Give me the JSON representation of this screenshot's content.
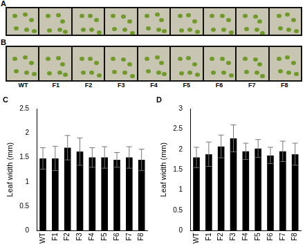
{
  "figure": {
    "photo_panels": [
      "A",
      "B"
    ],
    "photo_labels": [
      "WT",
      "F1",
      "F2",
      "F3",
      "F4",
      "F5",
      "F6",
      "F7",
      "F8"
    ]
  },
  "chart_data": [
    {
      "type": "bar",
      "panel_label": "C",
      "y_label": "Leaf width (mm)",
      "categories": [
        "WT",
        "F1",
        "F2",
        "F3",
        "F4",
        "F5",
        "F6",
        "F7",
        "F8"
      ],
      "values": [
        1.48,
        1.48,
        1.7,
        1.62,
        1.5,
        1.5,
        1.45,
        1.5,
        1.45
      ],
      "errors": [
        0.22,
        0.25,
        0.25,
        0.28,
        0.2,
        0.22,
        0.15,
        0.22,
        0.22
      ],
      "color": "#000000",
      "ylim": [
        0,
        2.5
      ],
      "yticks": [
        0,
        0.5,
        1,
        1.5,
        2,
        2.5
      ],
      "grid": false
    },
    {
      "type": "bar",
      "panel_label": "D",
      "y_label": "Leaf width (mm)",
      "categories": [
        "WT",
        "F1",
        "F2",
        "F3",
        "F4",
        "F5",
        "F6",
        "F7",
        "F8"
      ],
      "values": [
        1.8,
        1.88,
        2.07,
        2.27,
        1.95,
        2.02,
        1.85,
        1.95,
        1.88
      ],
      "errors": [
        0.25,
        0.3,
        0.28,
        0.33,
        0.2,
        0.22,
        0.2,
        0.25,
        0.27
      ],
      "color": "#000000",
      "ylim": [
        0,
        3
      ],
      "yticks": [
        0,
        0.5,
        1,
        1.5,
        2,
        2.5,
        3
      ],
      "grid": false
    }
  ]
}
